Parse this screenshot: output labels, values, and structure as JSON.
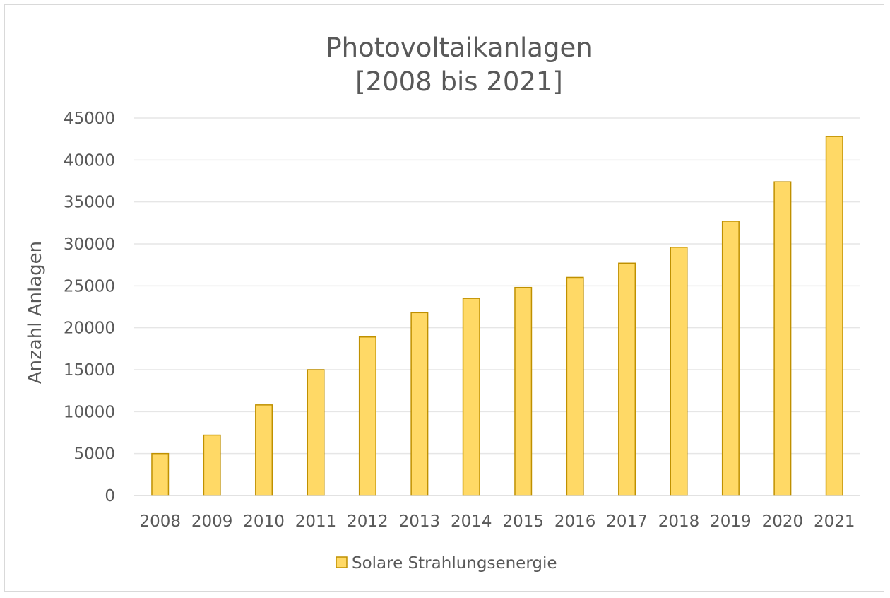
{
  "chart_data": {
    "type": "bar",
    "title": "Photovoltaikanlagen",
    "subtitle": "[2008 bis 2021]",
    "xlabel": "",
    "ylabel": "Anzahl Anlagen",
    "ylim": [
      0,
      45000
    ],
    "yticks": [
      "0",
      "5000",
      "10000",
      "15000",
      "20000",
      "25000",
      "30000",
      "35000",
      "40000",
      "45000"
    ],
    "grid": true,
    "legend_position": "bottom",
    "categories": [
      "2008",
      "2009",
      "2010",
      "2011",
      "2012",
      "2013",
      "2014",
      "2015",
      "2016",
      "2017",
      "2018",
      "2019",
      "2020",
      "2021"
    ],
    "series": [
      {
        "name": "Solare Strahlungsenergie",
        "values": [
          5000,
          7200,
          10800,
          15000,
          18900,
          21800,
          23500,
          24800,
          26000,
          27700,
          29600,
          32700,
          37400,
          42800
        ],
        "color": "#ffd966",
        "stroke": "#bf9000"
      }
    ],
    "colors": {
      "text": "#595959",
      "grid": "#e6e6e6",
      "axis": "#d9d9d9"
    }
  }
}
